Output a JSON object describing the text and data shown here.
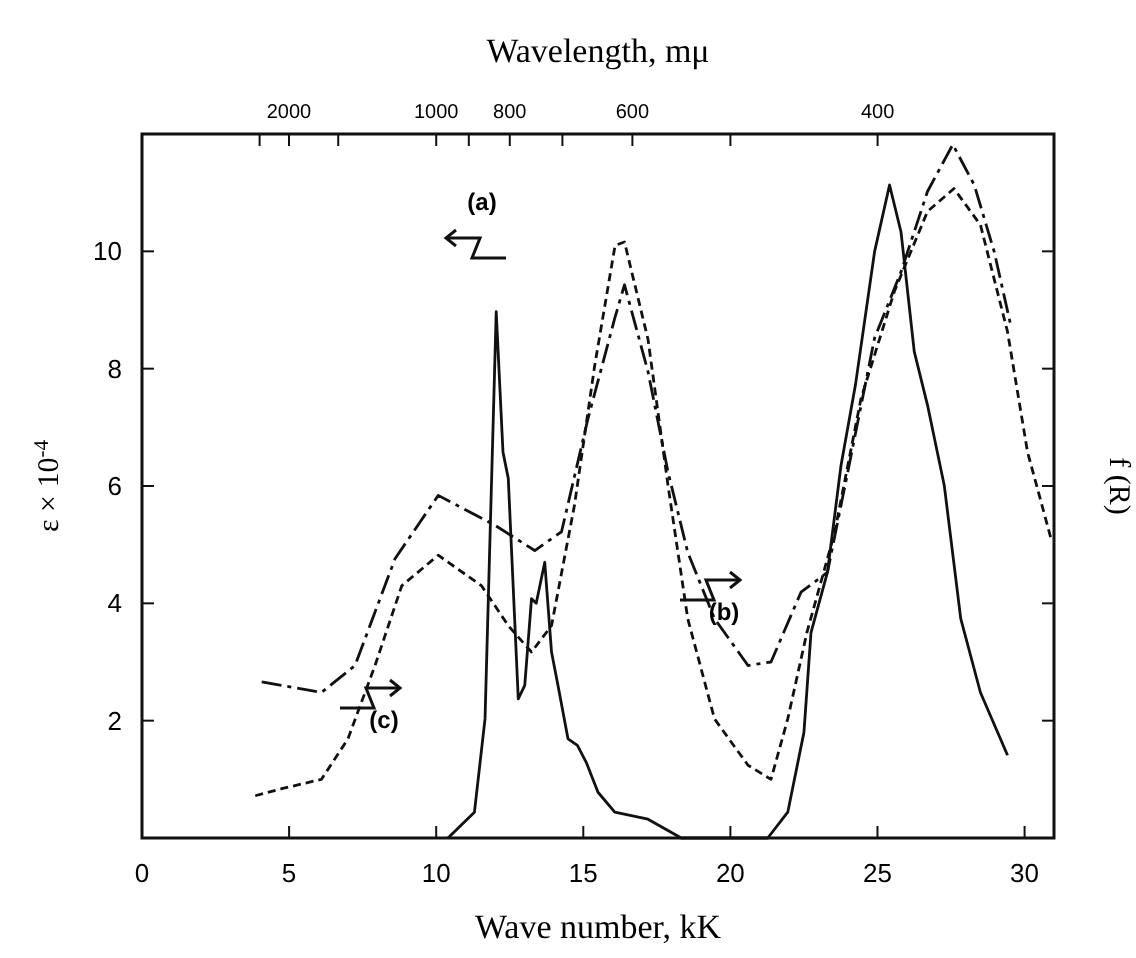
{
  "chart_data": {
    "type": "line",
    "xlabel": "Wave number, kK",
    "ylabel": "ε × 10$^{-4}$",
    "y2label": "f (R)",
    "x2label": "Wavelength, mμ",
    "xlim": [
      0,
      31
    ],
    "xticks": [
      0,
      5,
      10,
      15,
      20,
      25,
      30
    ],
    "ylim": [
      0,
      12
    ],
    "yticks": [
      2,
      4,
      6,
      8,
      10
    ],
    "grid": false,
    "marker": "none",
    "series": [
      {
        "color": "#111111",
        "line_style": "solid",
        "x": [
          10.4,
          11.3,
          11.66,
          12.04,
          12.27,
          12.45,
          12.79,
          13.01,
          13.24,
          13.4,
          13.69,
          13.92,
          14.14,
          14.48,
          14.8,
          15.1,
          15.5,
          16.07,
          17.2,
          18.33,
          21.27,
          21.95,
          22.5,
          22.74,
          23.3,
          23.76,
          24.25,
          24.9,
          25.41,
          25.8,
          26.25,
          26.7,
          27.27,
          27.83,
          28.5,
          29.42
        ],
        "values": [
          0,
          0.44,
          2.03,
          8.97,
          6.58,
          6.13,
          2.37,
          2.6,
          4.08,
          4.0,
          4.7,
          3.17,
          2.6,
          1.69,
          1.58,
          1.29,
          0.78,
          0.44,
          0.32,
          0,
          0,
          0.44,
          1.8,
          3.5,
          4.53,
          6.35,
          7.72,
          9.99,
          11.13,
          10.33,
          8.29,
          7.38,
          6.01,
          3.74,
          2.48,
          1.41
        ]
      },
      {
        "color": "#111111",
        "line_style": "dashed",
        "x": [
          4.07,
          6.1,
          7.24,
          8.6,
          10.07,
          12.0,
          13.35,
          14.26,
          15.16,
          16.07,
          16.4,
          17.2,
          17.88,
          18.55,
          19.46,
          20.6,
          21.38,
          22.4,
          23.3,
          23.99,
          24.9,
          25.8,
          26.7,
          27.56,
          28.29,
          28.97,
          29.53
        ],
        "values": [
          2.66,
          2.48,
          2.94,
          4.76,
          5.84,
          5.33,
          4.9,
          5.22,
          7.15,
          8.86,
          9.43,
          7.95,
          6.24,
          4.87,
          3.74,
          2.94,
          3.0,
          4.19,
          4.53,
          6.24,
          8.52,
          9.65,
          11.02,
          11.82,
          11.13,
          9.99,
          8.74
        ]
      },
      {
        "color": "#111111",
        "line_style": "dotted",
        "x": [
          3.85,
          4.75,
          6.1,
          7.0,
          7.92,
          8.83,
          10.07,
          11.54,
          12.45,
          13.24,
          13.92,
          14.7,
          15.39,
          16.08,
          16.4,
          17.2,
          17.88,
          18.55,
          19.46,
          20.6,
          21.38,
          21.95,
          22.6,
          23.54,
          24.44,
          25.57,
          26.7,
          27.6,
          28.5,
          29.42,
          30.1,
          30.9
        ],
        "values": [
          0.72,
          0.84,
          1.0,
          1.69,
          2.94,
          4.3,
          4.82,
          4.3,
          3.62,
          3.17,
          3.62,
          5.67,
          8.06,
          10.1,
          10.16,
          8.5,
          6.01,
          3.74,
          2.03,
          1.24,
          1.0,
          2.03,
          3.5,
          5.2,
          7.49,
          9.31,
          10.68,
          11.07,
          10.45,
          8.63,
          6.58,
          5.1
        ]
      }
    ],
    "annotations": [
      "(a)",
      "(b)",
      "(c)",
      "2000",
      "1000",
      "800",
      "600",
      "400"
    ]
  }
}
